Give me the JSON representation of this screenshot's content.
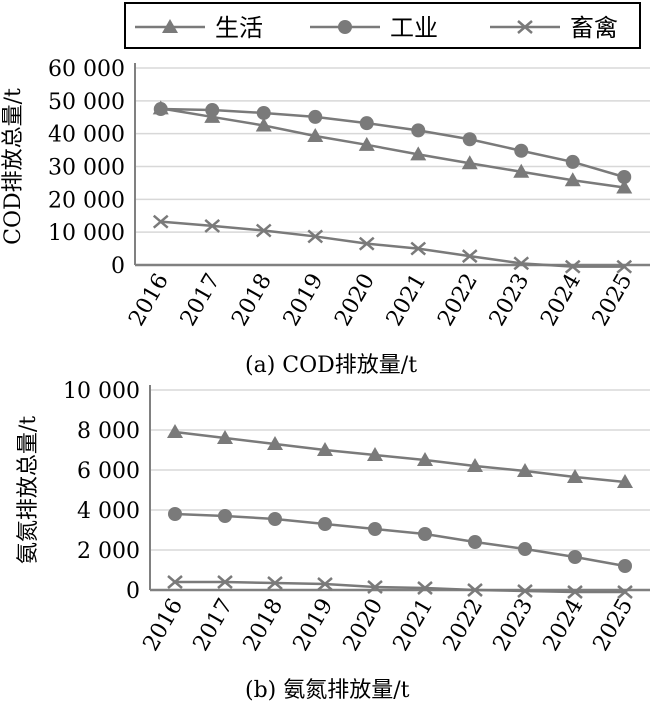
{
  "chart_data": [
    {
      "type": "line",
      "title": "(a) COD排放量/t",
      "ylabel": "COD排放总量/t",
      "xlabel": "",
      "categories": [
        "2016",
        "2017",
        "2018",
        "2019",
        "2020",
        "2021",
        "2022",
        "2023",
        "2024",
        "2025"
      ],
      "ylim": [
        0,
        60000
      ],
      "yticks": [
        0,
        10000,
        20000,
        30000,
        40000,
        50000,
        60000
      ],
      "ytick_labels": [
        "0",
        "10 000",
        "20 000",
        "30 000",
        "40 000",
        "50 000",
        "60 000"
      ],
      "grid": true,
      "legend": "top",
      "series": [
        {
          "name": "生活",
          "marker": "triangle",
          "values": [
            47700,
            45100,
            42500,
            39300,
            36600,
            33700,
            31000,
            28400,
            25800,
            23600
          ]
        },
        {
          "name": "工业",
          "marker": "circle",
          "values": [
            47500,
            47200,
            46300,
            45100,
            43200,
            41000,
            38300,
            34800,
            31400,
            26800
          ]
        },
        {
          "name": "畜禽",
          "marker": "x",
          "values": [
            13200,
            11900,
            10500,
            8700,
            6500,
            5000,
            2700,
            500,
            -500,
            -500
          ]
        }
      ]
    },
    {
      "type": "line",
      "title": "(b) 氨氮排放量/t",
      "ylabel": "氨氮排放总量/t",
      "xlabel": "",
      "categories": [
        "2016",
        "2017",
        "2018",
        "2019",
        "2020",
        "2021",
        "2022",
        "2023",
        "2024",
        "2025"
      ],
      "ylim": [
        0,
        10000
      ],
      "yticks": [
        0,
        2000,
        4000,
        6000,
        8000,
        10000
      ],
      "ytick_labels": [
        "0",
        "2 000",
        "4 000",
        "6 000",
        "8 000",
        "10 000"
      ],
      "grid": true,
      "series": [
        {
          "name": "生活",
          "marker": "triangle",
          "values": [
            7900,
            7600,
            7300,
            7000,
            6750,
            6500,
            6200,
            5950,
            5650,
            5400
          ]
        },
        {
          "name": "工业",
          "marker": "circle",
          "values": [
            3800,
            3700,
            3550,
            3300,
            3050,
            2800,
            2400,
            2050,
            1650,
            1200
          ]
        },
        {
          "name": "畜禽",
          "marker": "x",
          "values": [
            400,
            400,
            350,
            300,
            150,
            100,
            0,
            -50,
            -100,
            -100
          ]
        }
      ]
    }
  ],
  "colors": {
    "line": "#7a7a7a",
    "grid": "#d8d8d8",
    "axis": "#808080",
    "text": "#000000"
  }
}
